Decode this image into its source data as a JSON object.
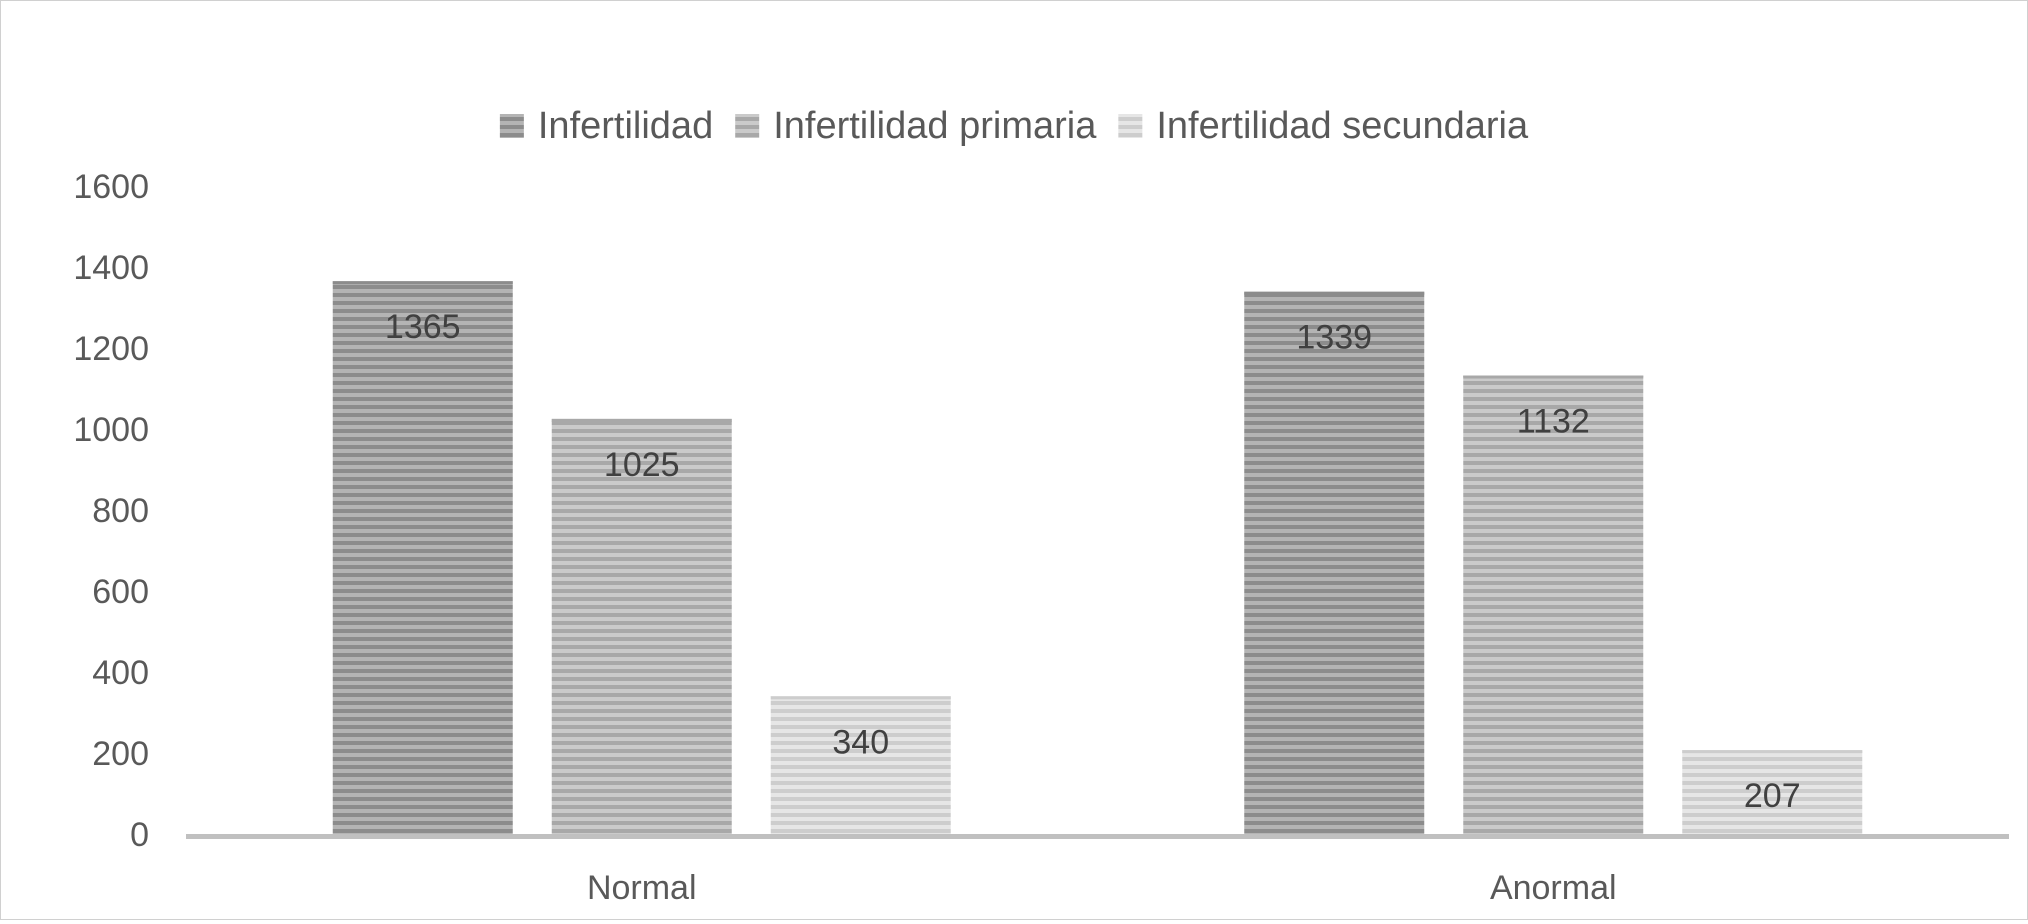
{
  "chart_data": {
    "type": "bar",
    "title": "",
    "xlabel": "",
    "ylabel": "",
    "categories": [
      "Normal",
      "Anormal"
    ],
    "series": [
      {
        "name": "Infertilidad",
        "values": [
          1365,
          1339
        ],
        "color": "#8c8c8c",
        "stripe": "#b4b4b4"
      },
      {
        "name": "Infertilidad primaria",
        "values": [
          1025,
          1132
        ],
        "color": "#a8a8a8",
        "stripe": "#cacaca"
      },
      {
        "name": "Infertilidad secundaria",
        "values": [
          340,
          207
        ],
        "color": "#cdcdcd",
        "stripe": "#e6e6e6"
      }
    ],
    "ylim": [
      0,
      1600
    ],
    "yticks": [
      0,
      200,
      400,
      600,
      800,
      1000,
      1200,
      1400,
      1600
    ],
    "grid": false,
    "legend_position": "top",
    "data_labels": true
  }
}
